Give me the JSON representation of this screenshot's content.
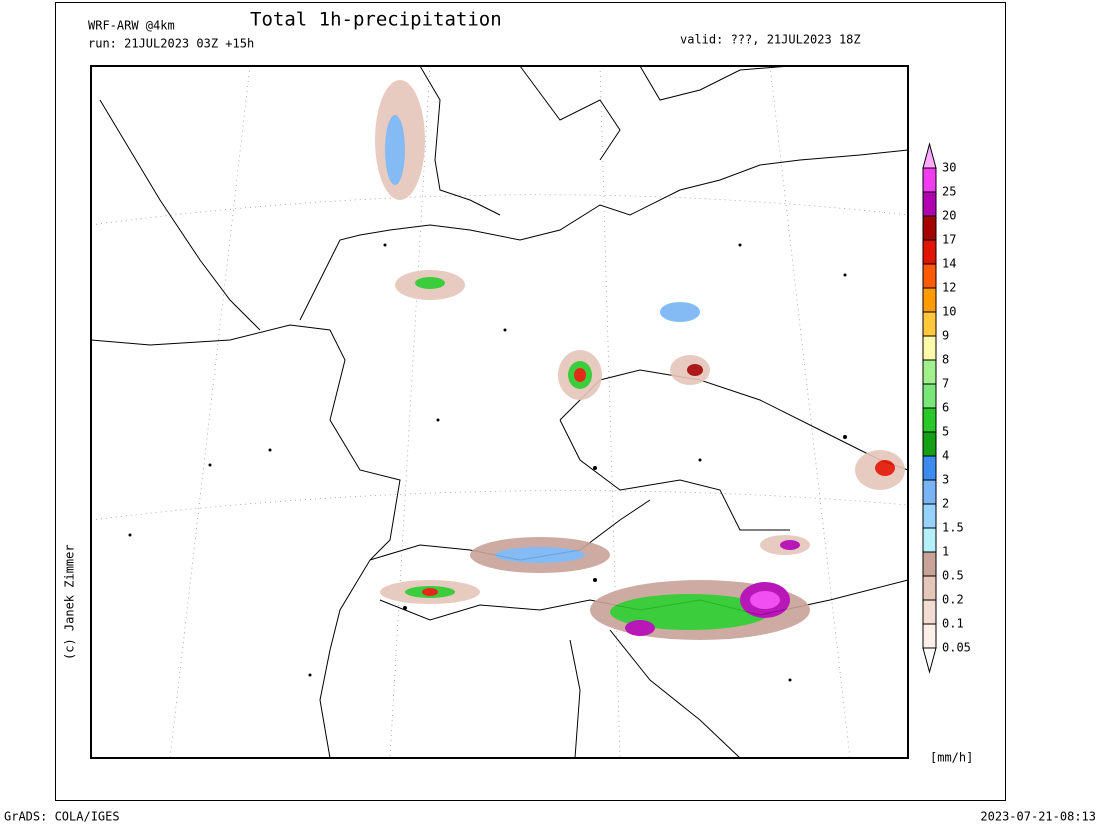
{
  "header": {
    "model": "WRF-ARW @4km",
    "title": "Total 1h-precipitation",
    "run": "run: 21JUL2023 03Z +15h",
    "valid": "valid: ???, 21JUL2023 18Z"
  },
  "credit": "(c) Janek Zimmer",
  "legend": {
    "unit": "[mm/h]",
    "levels": [
      0.05,
      0.1,
      0.2,
      0.5,
      1,
      1.5,
      2,
      3,
      4,
      5,
      6,
      7,
      8,
      9,
      10,
      12,
      14,
      17,
      20,
      25,
      30
    ],
    "colors": [
      "#ffffff",
      "#fdf0e8",
      "#f3ddd3",
      "#e6c6ba",
      "#c9a398",
      "#b4f0fa",
      "#96d2fa",
      "#78b4f5",
      "#3c8cf0",
      "#14a014",
      "#28c828",
      "#78e678",
      "#a0f08c",
      "#fafaaa",
      "#ffc83c",
      "#ff9a00",
      "#ff5a00",
      "#e11400",
      "#a50000",
      "#b000b0",
      "#f03cf0",
      "#ffaaff"
    ]
  },
  "footer": {
    "software": "GrADS: COLA/IGES",
    "timestamp": "2023-07-21-08:13"
  }
}
